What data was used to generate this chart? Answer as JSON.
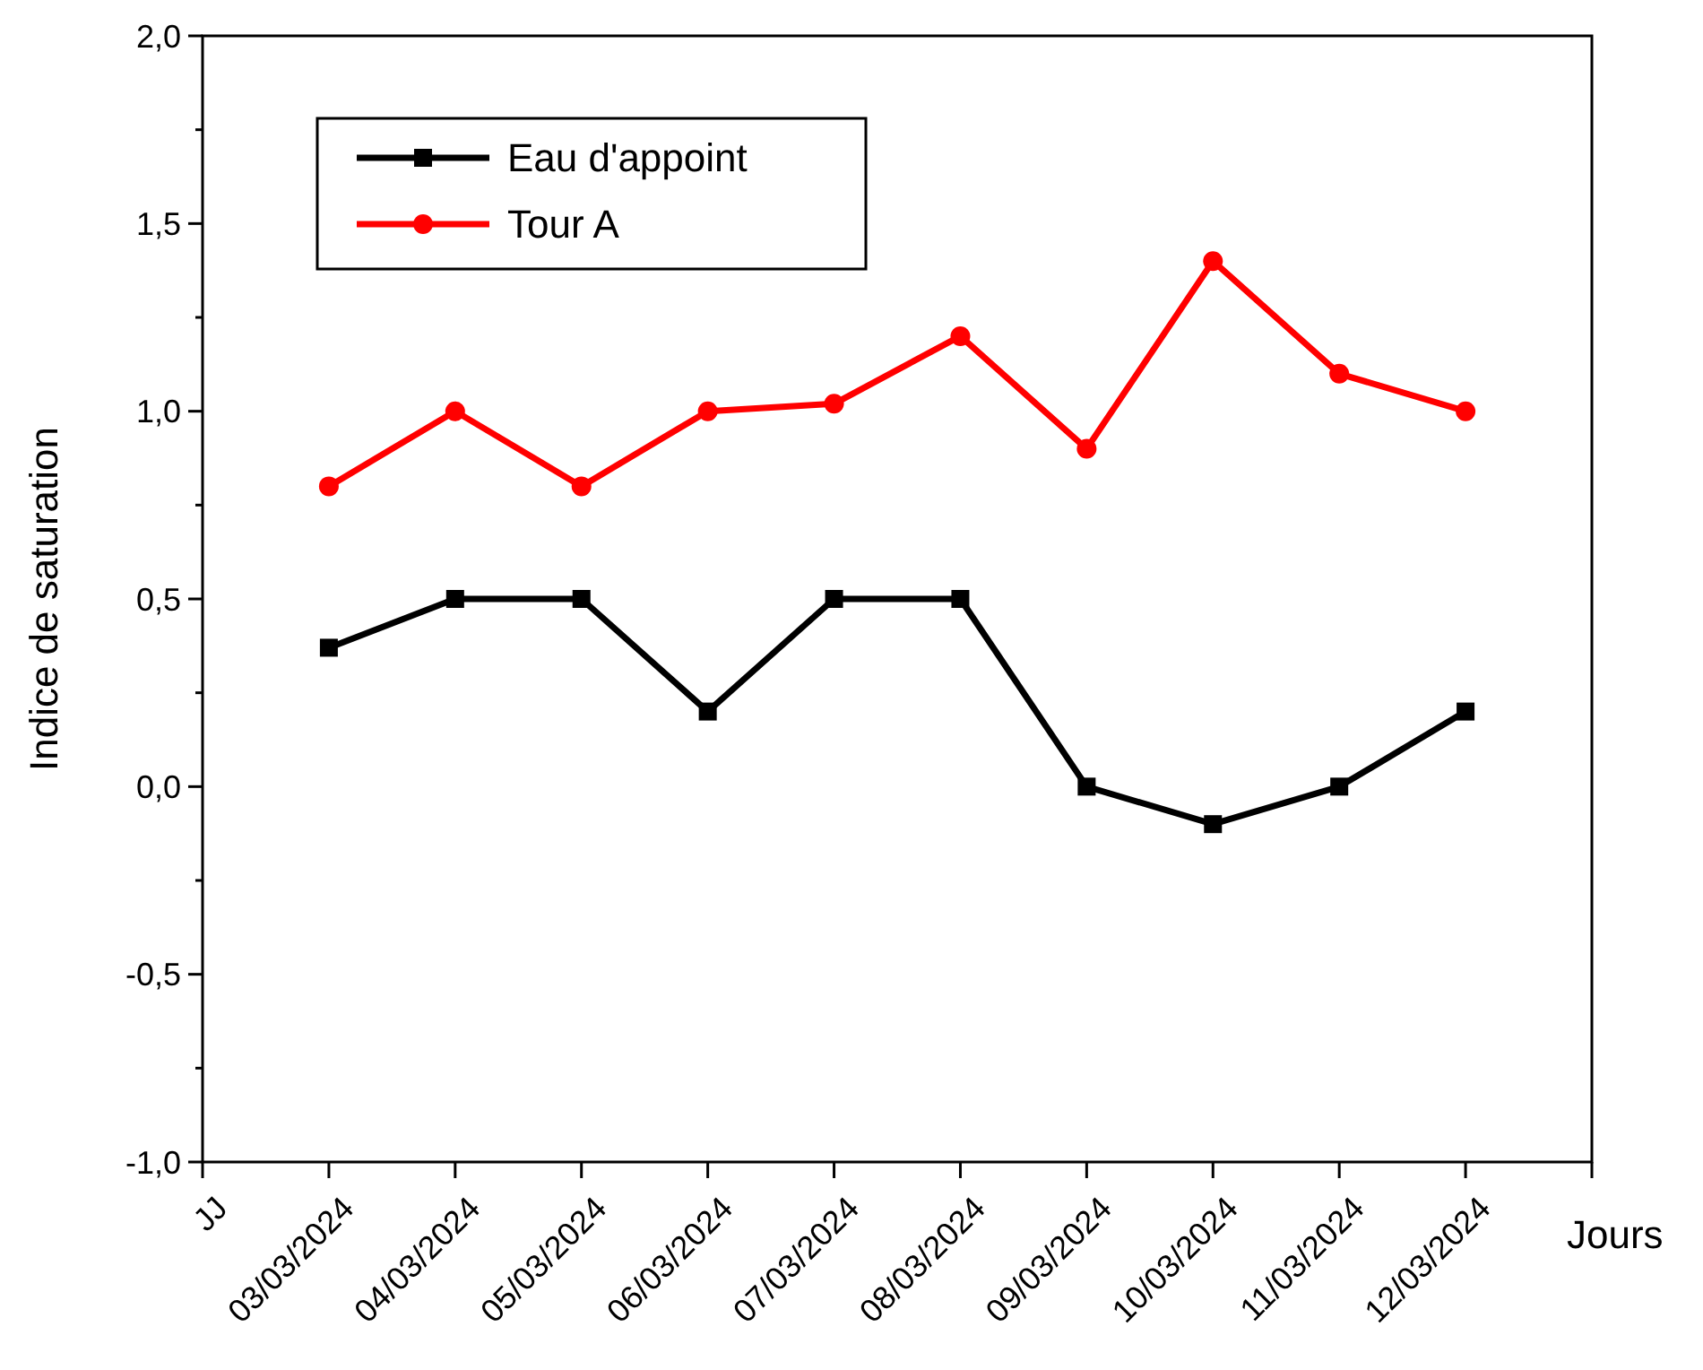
{
  "chart_data": {
    "type": "line",
    "xlabel": "Jours",
    "ylabel": "Indice de saturation",
    "categories": [
      "JJ",
      "03/03/2024",
      "04/03/2024",
      "05/03/2024",
      "06/03/2024",
      "07/03/2024",
      "08/03/2024",
      "09/03/2024",
      "10/03/2024",
      "11/03/2024",
      "12/03/2024",
      null
    ],
    "series": [
      {
        "name": "Eau d'appoint",
        "color": "#000000",
        "marker": "square",
        "values": [
          null,
          0.37,
          0.5,
          0.5,
          0.2,
          0.5,
          0.5,
          0,
          -0.1,
          0,
          0.2,
          null
        ]
      },
      {
        "name": "Tour A",
        "color": "#ff0000",
        "marker": "circle",
        "values": [
          null,
          0.8,
          1.0,
          0.8,
          1.0,
          1.02,
          1.2,
          0.9,
          1.4,
          1.1,
          1.0,
          null
        ]
      }
    ],
    "ylim": [
      -1,
      2
    ],
    "yticks": [
      {
        "value": -1,
        "label": "-1,0"
      },
      {
        "value": -0.75,
        "label": null
      },
      {
        "value": -0.5,
        "label": "-0,5"
      },
      {
        "value": -0.25,
        "label": null
      },
      {
        "value": 0,
        "label": "0,0"
      },
      {
        "value": 0.25,
        "label": null
      },
      {
        "value": 0.5,
        "label": "0,5"
      },
      {
        "value": 0.75,
        "label": null
      },
      {
        "value": 1,
        "label": "1,0"
      },
      {
        "value": 1.25,
        "label": null
      },
      {
        "value": 1.5,
        "label": "1,5"
      },
      {
        "value": 1.75,
        "label": null
      },
      {
        "value": 2,
        "label": "2,0"
      }
    ],
    "legend": "top left",
    "grid": false,
    "line_style": "solid"
  }
}
